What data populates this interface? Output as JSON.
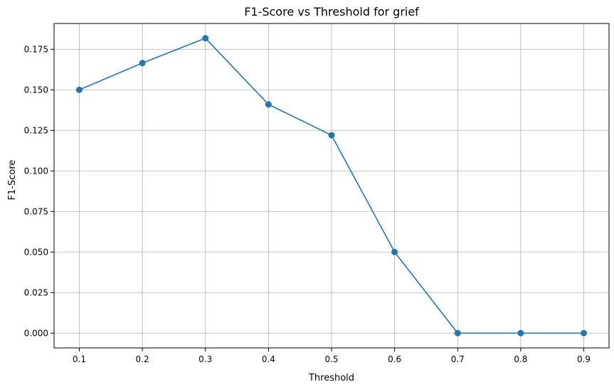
{
  "chart_data": {
    "type": "line",
    "title": "F1-Score vs Threshold for grief",
    "xlabel": "Threshold",
    "ylabel": "F1-Score",
    "x": [
      0.1,
      0.2,
      0.3,
      0.4,
      0.5,
      0.6,
      0.7,
      0.8,
      0.9
    ],
    "series": [
      {
        "values": [
          0.15,
          0.1665,
          0.1818,
          0.141,
          0.122,
          0.05,
          0.0,
          0.0,
          0.0
        ],
        "color": "#1f77b4",
        "marker": "circle"
      }
    ],
    "xlim": [
      0.06,
      0.94
    ],
    "ylim": [
      -0.0091,
      0.1909
    ],
    "x_ticks": [
      0.1,
      0.2,
      0.3,
      0.4,
      0.5,
      0.6,
      0.7,
      0.8,
      0.9
    ],
    "x_tick_labels": [
      "0.1",
      "0.2",
      "0.3",
      "0.4",
      "0.5",
      "0.6",
      "0.7",
      "0.8",
      "0.9"
    ],
    "y_ticks": [
      0.0,
      0.025,
      0.05,
      0.075,
      0.1,
      0.125,
      0.15,
      0.175
    ],
    "y_tick_labels": [
      "0.000",
      "0.025",
      "0.050",
      "0.075",
      "0.100",
      "0.125",
      "0.150",
      "0.175"
    ],
    "grid": true,
    "grid_color": "#b0b0b0"
  }
}
